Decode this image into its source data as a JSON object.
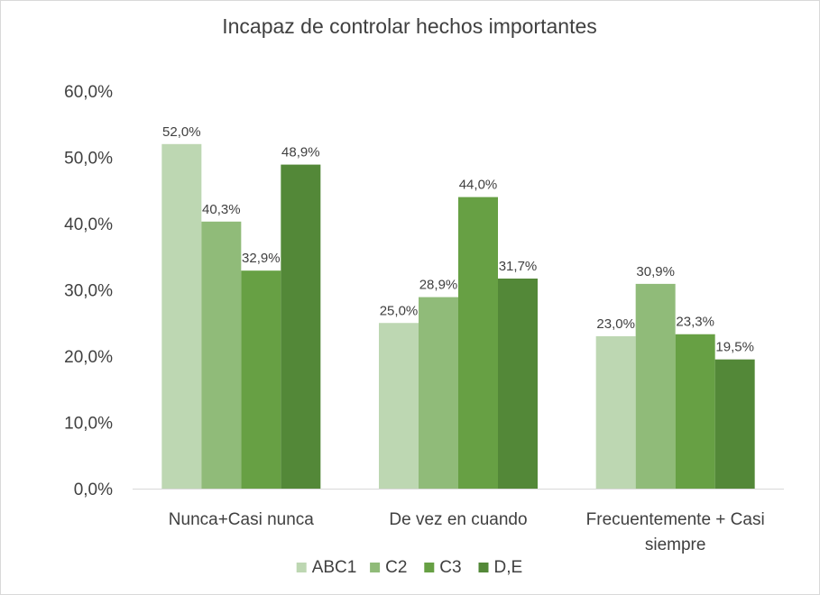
{
  "chart_data": {
    "type": "bar",
    "title": "Incapaz de controlar hechos importantes",
    "categories": [
      [
        "Nunca+Casi nunca"
      ],
      [
        "De vez en cuando"
      ],
      [
        "Frecuentemente + Casi",
        "siempre"
      ]
    ],
    "series": [
      {
        "name": "ABC1",
        "color": "#bdd7b2",
        "values": [
          52.0,
          25.0,
          23.0
        ],
        "labels": [
          "52,0%",
          "25,0%",
          "23,0%"
        ]
      },
      {
        "name": "C2",
        "color": "#90bb79",
        "values": [
          40.3,
          28.9,
          30.9
        ],
        "labels": [
          "40,3%",
          "28,9%",
          "30,9%"
        ]
      },
      {
        "name": "C3",
        "color": "#67a044",
        "values": [
          32.9,
          44.0,
          23.3
        ],
        "labels": [
          "32,9%",
          "44,0%",
          "23,3%"
        ]
      },
      {
        "name": "D,E",
        "color": "#538838",
        "values": [
          48.9,
          31.7,
          19.5
        ],
        "labels": [
          "48,9%",
          "31,7%",
          "19,5%"
        ]
      }
    ],
    "ylim": [
      0,
      60
    ],
    "yticks": [
      0,
      10,
      20,
      30,
      40,
      50,
      60
    ],
    "ytick_labels": [
      "0,0%",
      "10,0%",
      "20,0%",
      "30,0%",
      "40,0%",
      "50,0%",
      "60,0%"
    ],
    "xlabel": "",
    "ylabel": "",
    "grid": false,
    "legend_position": "bottom"
  }
}
